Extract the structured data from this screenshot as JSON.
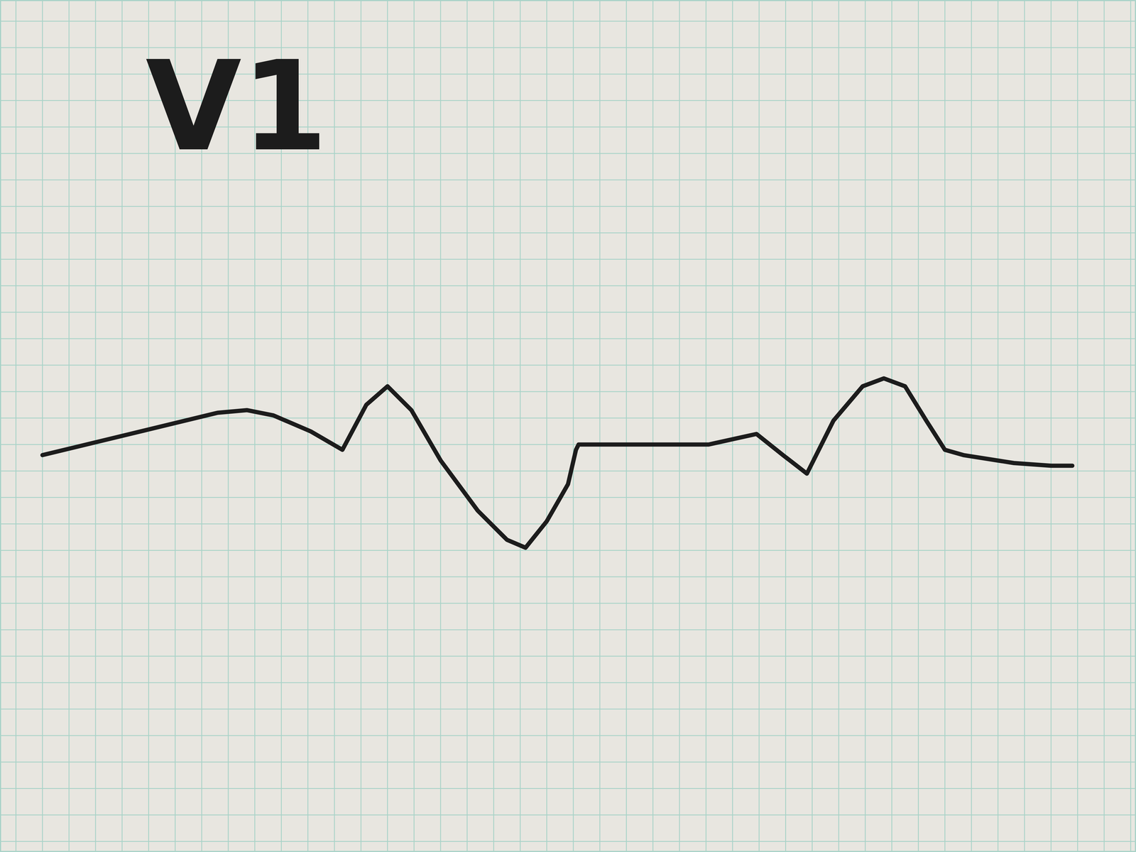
{
  "chart_data": {
    "type": "line",
    "title": "V1",
    "x": [
      0,
      3.3,
      6.6,
      7.7,
      8.7,
      10.1,
      11.3,
      12.2,
      13.0,
      13.9,
      15.0,
      16.4,
      17.5,
      18.2,
      19.0,
      19.8,
      20.1,
      20.2,
      23.0,
      25.1,
      26.9,
      27.9,
      28.8,
      29.8,
      30.9,
      31.7,
      32.5,
      33.3,
      34.0,
      34.7,
      36.6,
      38.0,
      38.8
    ],
    "values": [
      -0.4,
      0.4,
      1.2,
      1.3,
      1.1,
      0.5,
      -0.2,
      1.5,
      2.2,
      1.3,
      -0.6,
      -2.5,
      -3.6,
      -3.9,
      -2.9,
      -1.5,
      -0.2,
      0,
      0,
      0,
      0.4,
      -0.4,
      -1.1,
      0.9,
      2.2,
      2.5,
      2.2,
      0.9,
      -0.2,
      -0.4,
      -0.7,
      -0.8,
      -0.8
    ],
    "color": "#1c1c1c",
    "line_style": "solid",
    "xlim": [
      -1.6,
      41.2
    ],
    "ylim": [
      -15.4,
      16.8
    ],
    "xticks": [
      -1,
      0,
      1,
      2,
      3,
      4,
      5,
      6,
      7,
      8,
      9,
      10,
      11,
      12,
      13,
      14,
      15,
      16,
      17,
      18,
      19,
      20,
      21,
      22,
      23,
      24,
      25,
      26,
      27,
      28,
      29,
      30,
      31,
      32,
      33,
      34,
      35,
      36,
      37,
      38,
      39,
      40,
      41
    ],
    "yticks": [
      -15,
      -14,
      -13,
      -12,
      -11,
      -10,
      -9,
      -8,
      -7,
      -6,
      -5,
      -4,
      -3,
      -2,
      -1,
      0,
      1,
      2,
      3,
      4,
      5,
      6,
      7,
      8,
      9,
      10,
      11,
      12,
      13,
      14,
      15,
      16
    ],
    "grid": true,
    "tick_labels": false
  }
}
